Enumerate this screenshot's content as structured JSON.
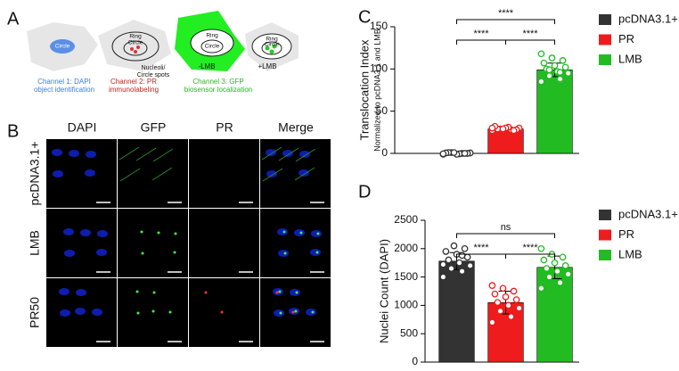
{
  "panel_labels": [
    "A",
    "B",
    "C",
    "D"
  ],
  "panel_a": {
    "cell_labels": [
      "Circle",
      "Ring",
      "Circle",
      "Ring",
      "Circle",
      "Ring",
      "Circle"
    ],
    "channel_1": [
      "Channel 1: DAPI",
      "object identification"
    ],
    "channel_2": [
      "Channel 2: PR",
      "immunolabeling"
    ],
    "nucleoli": [
      "Nucleoli/",
      "Circle spots"
    ],
    "channel_3": [
      "Channel 3: GFP",
      "biosensor localization"
    ],
    "minus_lmb": "-LMB",
    "plus_lmb": "+LMB"
  },
  "panel_b": {
    "columns": [
      "DAPI",
      "GFP",
      "PR",
      "Merge"
    ],
    "rows": [
      "pcDNA3.1+",
      "LMB",
      "PR50"
    ]
  },
  "chart_data": [
    {
      "type": "bar",
      "ylabel": "Translocation Index",
      "ylabel_sub": "Normalized to pcDNA3.1 and LMB",
      "categories": [
        "pcDNA3.1+",
        "PR",
        "LMB"
      ],
      "colors": [
        "#333333",
        "#ee1c1c",
        "#22bb22"
      ],
      "values": [
        0,
        29,
        99
      ],
      "errors": [
        1,
        2,
        8
      ],
      "points": [
        [
          -1,
          0,
          1,
          0.5,
          -0.5,
          1,
          0,
          -1,
          0.5,
          0,
          1,
          -0.5
        ],
        [
          27,
          28,
          29,
          30,
          31,
          29,
          28,
          30,
          32,
          27,
          29,
          30
        ],
        [
          85,
          88,
          92,
          95,
          97,
          100,
          102,
          104,
          107,
          110,
          113,
          118,
          96,
          99
        ]
      ],
      "ylim": [
        0,
        150
      ],
      "yticks": [
        0,
        50,
        100,
        150
      ],
      "annotations": [
        "****",
        "****",
        "****"
      ]
    },
    {
      "type": "bar",
      "ylabel": "Nuclei Count (DAPI)",
      "categories": [
        "pcDNA3.1+",
        "PR",
        "LMB"
      ],
      "colors": [
        "#333333",
        "#ee1c1c",
        "#22bb22"
      ],
      "values": [
        1780,
        1050,
        1670
      ],
      "errors": [
        150,
        200,
        200
      ],
      "points": [
        [
          1500,
          1600,
          1650,
          1700,
          1750,
          1800,
          1850,
          1900,
          1950,
          2000,
          2050,
          1720,
          1880
        ],
        [
          700,
          800,
          900,
          950,
          1000,
          1050,
          1100,
          1150,
          1200,
          1250,
          1300,
          1350
        ],
        [
          1300,
          1400,
          1500,
          1550,
          1600,
          1650,
          1700,
          1750,
          1800,
          1850,
          1900,
          2000
        ]
      ],
      "ylim": [
        0,
        2500
      ],
      "yticks": [
        0,
        500,
        1000,
        1500,
        2000,
        2500
      ],
      "annotations": [
        "ns",
        "****",
        "****"
      ]
    }
  ]
}
